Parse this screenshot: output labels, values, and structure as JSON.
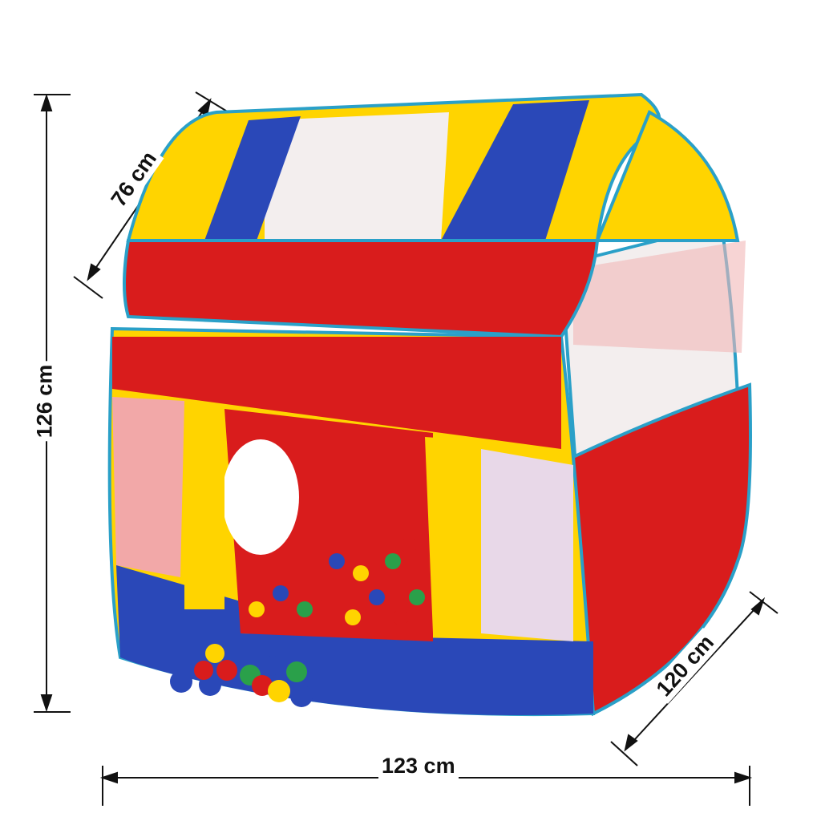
{
  "product": {
    "subject": "pop-up play tent with ball pit balls",
    "colors": {
      "red": "#d91c1c",
      "yellow": "#ffd400",
      "blue": "#2a48b8",
      "trim": "#2aa0c8",
      "mesh": "#f3eeee"
    }
  },
  "dimensions": {
    "depth": "76 cm",
    "height": "126 cm",
    "side": "120 cm",
    "width": "123 cm"
  }
}
